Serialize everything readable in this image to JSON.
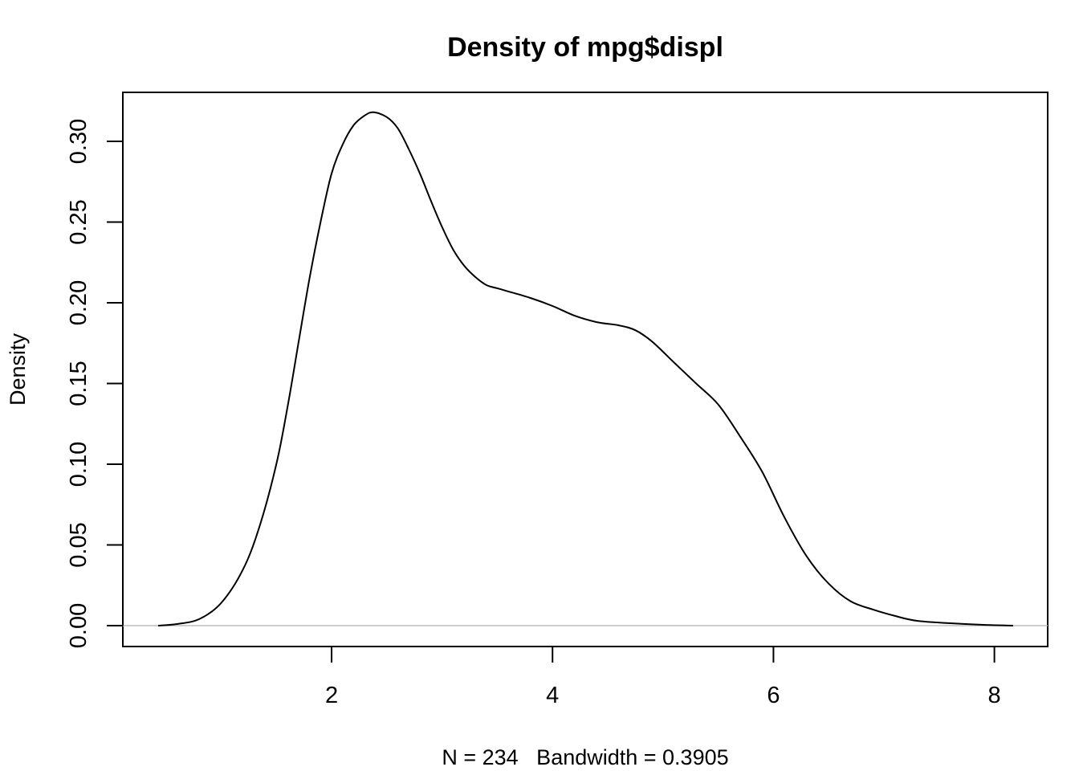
{
  "chart_data": {
    "type": "line",
    "title": "Density of mpg$displ",
    "xlabel": "N = 234   Bandwidth = 0.3905",
    "ylabel": "Density",
    "xlim": [
      0.43,
      8.17
    ],
    "ylim": [
      0,
      0.3179
    ],
    "x_ticks": [
      2,
      4,
      6,
      8
    ],
    "x_tick_labels": [
      "2",
      "4",
      "6",
      "8"
    ],
    "y_ticks": [
      0,
      0.05,
      0.1,
      0.15,
      0.2,
      0.25,
      0.3
    ],
    "y_tick_labels": [
      "0.00",
      "0.05",
      "0.10",
      "0.15",
      "0.20",
      "0.25",
      "0.30"
    ],
    "grid": false,
    "line_color": "#000000",
    "baseline_color": "#bebebe",
    "series": [
      {
        "x": [
          0.43,
          0.6,
          0.8,
          1.0,
          1.2,
          1.35,
          1.5,
          1.6,
          1.7,
          1.8,
          1.9,
          2.0,
          2.1,
          2.2,
          2.3,
          2.38,
          2.5,
          2.6,
          2.7,
          2.8,
          2.9,
          3.0,
          3.1,
          3.2,
          3.3,
          3.4,
          3.5,
          3.6,
          3.8,
          4.0,
          4.2,
          4.4,
          4.6,
          4.75,
          4.9,
          5.1,
          5.3,
          5.5,
          5.7,
          5.9,
          6.1,
          6.3,
          6.5,
          6.7,
          6.9,
          7.1,
          7.3,
          7.6,
          7.9,
          8.17
        ],
        "y": [
          0.0,
          0.001,
          0.004,
          0.014,
          0.035,
          0.062,
          0.1,
          0.135,
          0.175,
          0.215,
          0.25,
          0.28,
          0.298,
          0.31,
          0.316,
          0.318,
          0.315,
          0.308,
          0.295,
          0.28,
          0.263,
          0.247,
          0.233,
          0.223,
          0.216,
          0.211,
          0.209,
          0.207,
          0.203,
          0.198,
          0.192,
          0.188,
          0.186,
          0.183,
          0.176,
          0.163,
          0.15,
          0.137,
          0.117,
          0.095,
          0.067,
          0.043,
          0.026,
          0.015,
          0.01,
          0.006,
          0.003,
          0.0015,
          0.0005,
          0.0
        ]
      }
    ]
  }
}
